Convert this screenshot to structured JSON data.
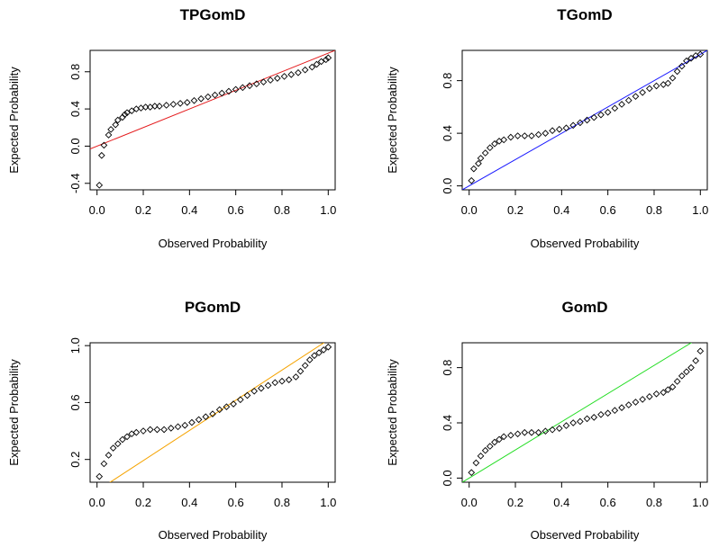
{
  "chart_data": [
    {
      "type": "scatter",
      "title": "TPGomD",
      "xlabel": "Observed Probability",
      "ylabel": "Expected Probability",
      "xlim": [
        -0.03,
        1.03
      ],
      "ylim": [
        -0.47,
        1.03
      ],
      "xticks": [
        "0.0",
        "0.2",
        "0.4",
        "0.6",
        "0.8",
        "1.0"
      ],
      "yticks": [
        "-0.4",
        "0.0",
        "0.4",
        "0.8"
      ],
      "ytick_values": [
        -0.4,
        0.0,
        0.4,
        0.8
      ],
      "xtick_values": [
        0,
        0.2,
        0.4,
        0.6,
        0.8,
        1.0
      ],
      "reference_line": {
        "color": "#e41a1c",
        "intercept": 0.0,
        "slope": 1.0
      },
      "series": [
        {
          "x": [
            0.01,
            0.02,
            0.03,
            0.05,
            0.06,
            0.08,
            0.09,
            0.11,
            0.12,
            0.13,
            0.15,
            0.17,
            0.19,
            0.21,
            0.23,
            0.25,
            0.27,
            0.3,
            0.33,
            0.36,
            0.39,
            0.42,
            0.45,
            0.48,
            0.51,
            0.54,
            0.57,
            0.6,
            0.63,
            0.66,
            0.69,
            0.72,
            0.75,
            0.78,
            0.81,
            0.84,
            0.87,
            0.9,
            0.93,
            0.95,
            0.97,
            0.99,
            1.0
          ],
          "y": [
            -0.42,
            -0.1,
            0.01,
            0.12,
            0.18,
            0.23,
            0.28,
            0.31,
            0.34,
            0.36,
            0.38,
            0.4,
            0.41,
            0.42,
            0.42,
            0.43,
            0.43,
            0.44,
            0.45,
            0.46,
            0.47,
            0.49,
            0.51,
            0.53,
            0.55,
            0.57,
            0.59,
            0.61,
            0.63,
            0.65,
            0.67,
            0.69,
            0.71,
            0.73,
            0.75,
            0.77,
            0.79,
            0.82,
            0.85,
            0.88,
            0.91,
            0.93,
            0.95
          ]
        }
      ]
    },
    {
      "type": "scatter",
      "title": "TGomD",
      "xlabel": "Observed Probability",
      "ylabel": "Expected Probability",
      "xlim": [
        -0.03,
        1.03
      ],
      "ylim": [
        -0.03,
        1.03
      ],
      "xticks": [
        "0.0",
        "0.2",
        "0.4",
        "0.6",
        "0.8",
        "1.0"
      ],
      "yticks": [
        "0.0",
        "0.4",
        "0.8"
      ],
      "ytick_values": [
        0.0,
        0.4,
        0.8
      ],
      "xtick_values": [
        0,
        0.2,
        0.4,
        0.6,
        0.8,
        1.0
      ],
      "reference_line": {
        "color": "#1a1aff",
        "intercept": 0.0,
        "slope": 1.0
      },
      "series": [
        {
          "x": [
            0.01,
            0.02,
            0.04,
            0.05,
            0.07,
            0.09,
            0.11,
            0.13,
            0.15,
            0.18,
            0.21,
            0.24,
            0.27,
            0.3,
            0.33,
            0.36,
            0.39,
            0.42,
            0.45,
            0.48,
            0.51,
            0.54,
            0.57,
            0.6,
            0.63,
            0.66,
            0.69,
            0.72,
            0.75,
            0.78,
            0.81,
            0.84,
            0.86,
            0.88,
            0.9,
            0.92,
            0.94,
            0.96,
            0.98,
            1.0
          ],
          "y": [
            0.04,
            0.13,
            0.17,
            0.21,
            0.25,
            0.29,
            0.32,
            0.34,
            0.35,
            0.37,
            0.38,
            0.38,
            0.38,
            0.39,
            0.4,
            0.42,
            0.43,
            0.44,
            0.46,
            0.48,
            0.5,
            0.52,
            0.54,
            0.56,
            0.59,
            0.62,
            0.65,
            0.68,
            0.71,
            0.74,
            0.76,
            0.77,
            0.78,
            0.82,
            0.87,
            0.91,
            0.95,
            0.97,
            0.99,
            1.0
          ]
        }
      ]
    },
    {
      "type": "scatter",
      "title": "PGomD",
      "xlabel": "Observed Probability",
      "ylabel": "Expected Probability",
      "xlim": [
        -0.03,
        1.03
      ],
      "ylim": [
        0.04,
        1.02
      ],
      "xticks": [
        "0.0",
        "0.2",
        "0.4",
        "0.6",
        "0.8",
        "1.0"
      ],
      "yticks": [
        "0.2",
        "0.6",
        "1.0"
      ],
      "ytick_values": [
        0.2,
        0.6,
        1.0
      ],
      "xtick_values": [
        0,
        0.2,
        0.4,
        0.6,
        0.8,
        1.0
      ],
      "reference_line": {
        "color": "#f5a300",
        "intercept": -0.02,
        "slope": 1.06
      },
      "series": [
        {
          "x": [
            0.01,
            0.03,
            0.05,
            0.07,
            0.09,
            0.11,
            0.13,
            0.15,
            0.17,
            0.2,
            0.23,
            0.26,
            0.29,
            0.32,
            0.35,
            0.38,
            0.41,
            0.44,
            0.47,
            0.5,
            0.53,
            0.56,
            0.59,
            0.62,
            0.65,
            0.68,
            0.71,
            0.74,
            0.77,
            0.8,
            0.83,
            0.86,
            0.88,
            0.9,
            0.92,
            0.94,
            0.96,
            0.98,
            1.0
          ],
          "y": [
            0.08,
            0.17,
            0.23,
            0.28,
            0.31,
            0.34,
            0.36,
            0.38,
            0.39,
            0.4,
            0.41,
            0.41,
            0.41,
            0.42,
            0.43,
            0.44,
            0.46,
            0.48,
            0.5,
            0.52,
            0.55,
            0.57,
            0.59,
            0.62,
            0.65,
            0.68,
            0.7,
            0.72,
            0.74,
            0.75,
            0.76,
            0.78,
            0.82,
            0.86,
            0.9,
            0.93,
            0.95,
            0.97,
            0.99
          ]
        }
      ]
    },
    {
      "type": "scatter",
      "title": "GomD",
      "xlabel": "Observed Probability",
      "ylabel": "Expected Probability",
      "xlim": [
        -0.03,
        1.03
      ],
      "ylim": [
        -0.03,
        0.98
      ],
      "xticks": [
        "0.0",
        "0.2",
        "0.4",
        "0.6",
        "0.8",
        "1.0"
      ],
      "yticks": [
        "0.0",
        "0.4",
        "0.8"
      ],
      "ytick_values": [
        0.0,
        0.4,
        0.8
      ],
      "xtick_values": [
        0,
        0.2,
        0.4,
        0.6,
        0.8,
        1.0
      ],
      "reference_line": {
        "color": "#22dd22",
        "intercept": 0.0,
        "slope": 1.02
      },
      "series": [
        {
          "x": [
            0.01,
            0.03,
            0.05,
            0.07,
            0.09,
            0.11,
            0.13,
            0.15,
            0.18,
            0.21,
            0.24,
            0.27,
            0.3,
            0.33,
            0.36,
            0.39,
            0.42,
            0.45,
            0.48,
            0.51,
            0.54,
            0.57,
            0.6,
            0.63,
            0.66,
            0.69,
            0.72,
            0.75,
            0.78,
            0.81,
            0.84,
            0.86,
            0.88,
            0.9,
            0.92,
            0.94,
            0.96,
            0.98,
            1.0
          ],
          "y": [
            0.04,
            0.11,
            0.16,
            0.2,
            0.23,
            0.26,
            0.28,
            0.3,
            0.31,
            0.32,
            0.33,
            0.33,
            0.33,
            0.34,
            0.35,
            0.36,
            0.38,
            0.4,
            0.41,
            0.43,
            0.44,
            0.46,
            0.47,
            0.49,
            0.51,
            0.53,
            0.55,
            0.57,
            0.59,
            0.61,
            0.62,
            0.64,
            0.66,
            0.7,
            0.74,
            0.77,
            0.8,
            0.85,
            0.92
          ]
        }
      ]
    }
  ]
}
